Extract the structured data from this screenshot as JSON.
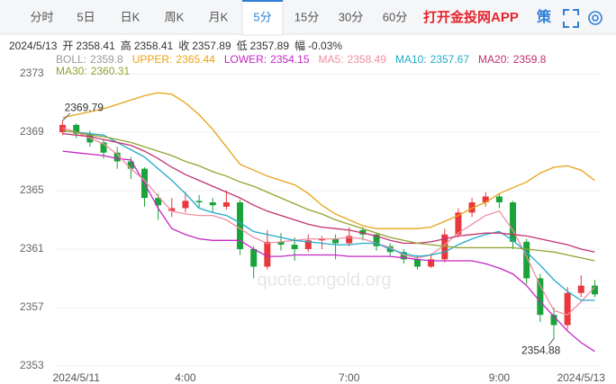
{
  "tabs": {
    "items": [
      "分时",
      "5日",
      "日K",
      "周K",
      "月K",
      "5分",
      "15分",
      "30分",
      "60分"
    ],
    "active": 5,
    "app": "打开金投网APP",
    "strategy": "策"
  },
  "info": {
    "date": "2024/5/13",
    "items": [
      {
        "label": "开",
        "value": "2358.41"
      },
      {
        "label": "高",
        "value": "2358.41"
      },
      {
        "label": "收",
        "value": "2357.89"
      },
      {
        "label": "低",
        "value": "2357.89"
      },
      {
        "label": "幅",
        "value": "-0.03%"
      }
    ]
  },
  "watermark": "quote.cngold.org",
  "chart_data": {
    "type": "candlestick",
    "categories": [
      null,
      "2024/5/11",
      null,
      null,
      null,
      null,
      null,
      null,
      null,
      "4:00",
      null,
      null,
      null,
      null,
      null,
      null,
      null,
      null,
      null,
      null,
      null,
      "7:00",
      null,
      null,
      null,
      null,
      null,
      null,
      null,
      null,
      null,
      null,
      "9:00",
      null,
      null,
      null,
      null,
      null,
      "2024/5/13",
      null
    ],
    "open": [
      2369.0,
      2369.5,
      2368.9,
      2368.3,
      2367.6,
      2367.0,
      2366.5,
      2364.5,
      2363.6,
      2363.8,
      2364.3,
      2364.2,
      2363.9,
      2364.2,
      2361.0,
      2359.8,
      2361.5,
      2361.3,
      2361.0,
      2361.6,
      2361.7,
      2361.4,
      2362.3,
      2362.0,
      2361.2,
      2360.8,
      2360.3,
      2359.8,
      2360.3,
      2362.0,
      2363.5,
      2364.2,
      2364.6,
      2364.2,
      2361.5,
      2359.0,
      2356.5,
      2355.8,
      2358.0,
      2358.5
    ],
    "high": [
      2369.79,
      2369.6,
      2369.1,
      2368.5,
      2368.0,
      2367.3,
      2366.6,
      2364.8,
      2364.5,
      2364.9,
      2364.7,
      2364.5,
      2365.0,
      2364.4,
      2361.2,
      2362.3,
      2362.1,
      2361.8,
      2362.0,
      2361.9,
      2362.0,
      2362.5,
      2362.5,
      2362.1,
      2361.4,
      2361.0,
      2360.6,
      2360.7,
      2362.4,
      2363.8,
      2364.5,
      2364.9,
      2364.8,
      2364.3,
      2361.7,
      2359.3,
      2357.0,
      2358.4,
      2359.2,
      2358.9
    ],
    "low": [
      2368.8,
      2368.6,
      2368.0,
      2367.2,
      2366.5,
      2365.8,
      2363.9,
      2363.0,
      2363.2,
      2363.5,
      2363.8,
      2363.5,
      2363.7,
      2360.6,
      2359.0,
      2359.6,
      2360.9,
      2360.2,
      2360.8,
      2361.0,
      2360.3,
      2361.2,
      2361.6,
      2360.9,
      2360.5,
      2360.0,
      2359.6,
      2359.7,
      2360.1,
      2361.8,
      2363.2,
      2363.9,
      2363.8,
      2361.0,
      2358.6,
      2356.0,
      2354.88,
      2355.5,
      2357.7,
      2357.7
    ],
    "close": [
      2369.5,
      2368.9,
      2368.3,
      2367.6,
      2367.0,
      2366.5,
      2364.5,
      2364.0,
      2363.8,
      2364.3,
      2364.2,
      2364.0,
      2364.2,
      2361.0,
      2359.8,
      2361.5,
      2361.3,
      2361.0,
      2361.6,
      2361.7,
      2361.4,
      2361.9,
      2362.0,
      2361.2,
      2360.8,
      2360.3,
      2359.8,
      2360.3,
      2362.0,
      2363.5,
      2364.2,
      2364.6,
      2364.2,
      2361.5,
      2359.0,
      2356.5,
      2355.8,
      2358.0,
      2358.5,
      2357.9
    ],
    "up_color": "#e8383d",
    "down_color": "#1aa33a",
    "lines": [
      {
        "name": "BOLL:",
        "color": "#999999",
        "legend_value": 2359.8
      },
      {
        "name": "UPPER:",
        "color": "#e8a317",
        "legend_value": 2365.44,
        "values": [
          2370.0,
          2370.2,
          2370.4,
          2370.6,
          2370.9,
          2371.2,
          2371.5,
          2371.7,
          2371.6,
          2371.0,
          2370.2,
          2369.2,
          2368.0,
          2366.8,
          2366.4,
          2366.0,
          2365.7,
          2365.4,
          2364.8,
          2364.0,
          2363.4,
          2363.0,
          2362.6,
          2362.4,
          2362.4,
          2362.4,
          2362.4,
          2362.5,
          2362.9,
          2363.3,
          2363.8,
          2364.2,
          2364.8,
          2365.2,
          2365.6,
          2366.2,
          2366.6,
          2366.7,
          2366.4,
          2365.7
        ]
      },
      {
        "name": "LOWER:",
        "color": "#c427c4",
        "legend_value": 2354.15,
        "values": [
          2367.7,
          2367.6,
          2367.5,
          2367.4,
          2367.2,
          2367.1,
          2365.5,
          2363.8,
          2362.4,
          2362.0,
          2361.7,
          2361.6,
          2361.6,
          2361.6,
          2361.0,
          2360.5,
          2360.5,
          2360.6,
          2360.6,
          2360.6,
          2360.6,
          2360.5,
          2360.5,
          2360.5,
          2360.5,
          2360.4,
          2360.3,
          2360.2,
          2360.2,
          2360.2,
          2360.2,
          2360.0,
          2359.7,
          2359.3,
          2358.5,
          2357.4,
          2356.4,
          2355.4,
          2354.6,
          2354.0
        ]
      },
      {
        "name": "MA5:",
        "color": "#f08fa0",
        "legend_value": 2358.49,
        "values": [
          2369.3,
          2369.0,
          2368.6,
          2368.2,
          2367.5,
          2366.5,
          2365.7,
          2364.6,
          2363.6,
          2363.4,
          2363.3,
          2363.3,
          2363.0,
          2362.4,
          2361.8,
          2361.4,
          2361.5,
          2361.6,
          2361.7,
          2361.7,
          2361.7,
          2361.8,
          2361.7,
          2361.4,
          2361.1,
          2360.6,
          2360.4,
          2360.6,
          2361.3,
          2362.1,
          2362.7,
          2363.3,
          2363.6,
          2362.3,
          2360.5,
          2358.5,
          2356.8,
          2356.5,
          2357.4,
          2358.4
        ]
      },
      {
        "name": "MA10:",
        "color": "#22a9cc",
        "legend_value": 2357.67,
        "values": [
          2369.1,
          2369.0,
          2368.9,
          2368.8,
          2368.3,
          2367.8,
          2367.3,
          2366.5,
          2365.7,
          2364.8,
          2363.8,
          2363.5,
          2363.3,
          2362.8,
          2362.2,
          2362.0,
          2361.8,
          2361.6,
          2361.5,
          2361.4,
          2361.3,
          2361.3,
          2361.4,
          2361.4,
          2361.0,
          2360.7,
          2360.5,
          2360.6,
          2360.8,
          2361.3,
          2361.7,
          2362.0,
          2362.2,
          2361.6,
          2360.8,
          2359.9,
          2358.9,
          2358.1,
          2357.5,
          2357.5
        ]
      },
      {
        "name": "MA20:",
        "color": "#c2306f",
        "legend_value": 2359.8,
        "values": [
          2368.9,
          2368.8,
          2368.7,
          2368.5,
          2368.3,
          2368.1,
          2367.7,
          2367.2,
          2366.6,
          2366.1,
          2365.7,
          2365.3,
          2364.9,
          2364.5,
          2364.0,
          2363.6,
          2363.3,
          2363.0,
          2362.7,
          2362.5,
          2362.4,
          2362.3,
          2362.1,
          2361.9,
          2361.6,
          2361.4,
          2361.4,
          2361.5,
          2361.7,
          2361.9,
          2362.0,
          2362.1,
          2362.1,
          2362.0,
          2361.9,
          2361.7,
          2361.5,
          2361.3,
          2361.0,
          2360.8
        ]
      },
      {
        "name": "MA30:",
        "color": "#94a332",
        "legend_value": 2360.31,
        "values": [
          2369.1,
          2369.0,
          2368.8,
          2368.7,
          2368.5,
          2368.3,
          2368.0,
          2367.7,
          2367.4,
          2367.0,
          2366.7,
          2366.3,
          2366.0,
          2365.6,
          2365.3,
          2364.9,
          2364.5,
          2364.1,
          2363.7,
          2363.4,
          2363.0,
          2362.7,
          2362.4,
          2362.1,
          2361.8,
          2361.6,
          2361.4,
          2361.3,
          2361.2,
          2361.1,
          2361.1,
          2361.1,
          2361.1,
          2361.1,
          2361.0,
          2360.9,
          2360.8,
          2360.6,
          2360.4,
          2360.2
        ]
      }
    ],
    "ylim": [
      2353,
      2373
    ],
    "yticks": [
      2373,
      2369,
      2365,
      2361,
      2357,
      2353
    ],
    "grid": true,
    "high_label_index": 0,
    "low_label_index": 36
  }
}
